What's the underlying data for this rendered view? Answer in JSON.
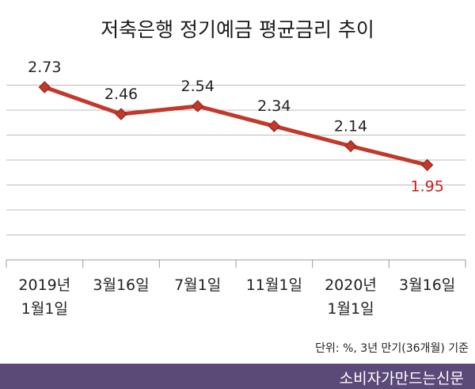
{
  "chart_data": {
    "type": "line",
    "title": "저축은행 정기예금 평균금리 추이",
    "unit_note": "단위: %, 3년 만기(36개월) 기준",
    "categories": [
      [
        "2019년",
        "1월1일"
      ],
      [
        "3월16일"
      ],
      [
        "7월1일"
      ],
      [
        "11월1일"
      ],
      [
        "2020년",
        "1월1일"
      ],
      [
        "3월16일"
      ]
    ],
    "values": [
      2.73,
      2.46,
      2.54,
      2.34,
      2.14,
      1.95
    ],
    "value_labels": [
      "2.73",
      "2.46",
      "2.54",
      "2.34",
      "2.14",
      "1.95"
    ],
    "ylim": [
      1.0,
      3.0
    ],
    "y_gridlines": [
      1.0,
      1.25,
      1.5,
      1.75,
      2.0,
      2.25,
      2.5,
      2.75
    ],
    "grid": true,
    "line_color": "#c0392b",
    "marker_color": "#c0392b",
    "last_label_color": "#c8201a"
  },
  "footer": {
    "brand": "소비자가만드는신문",
    "background": "#5b4a78"
  }
}
